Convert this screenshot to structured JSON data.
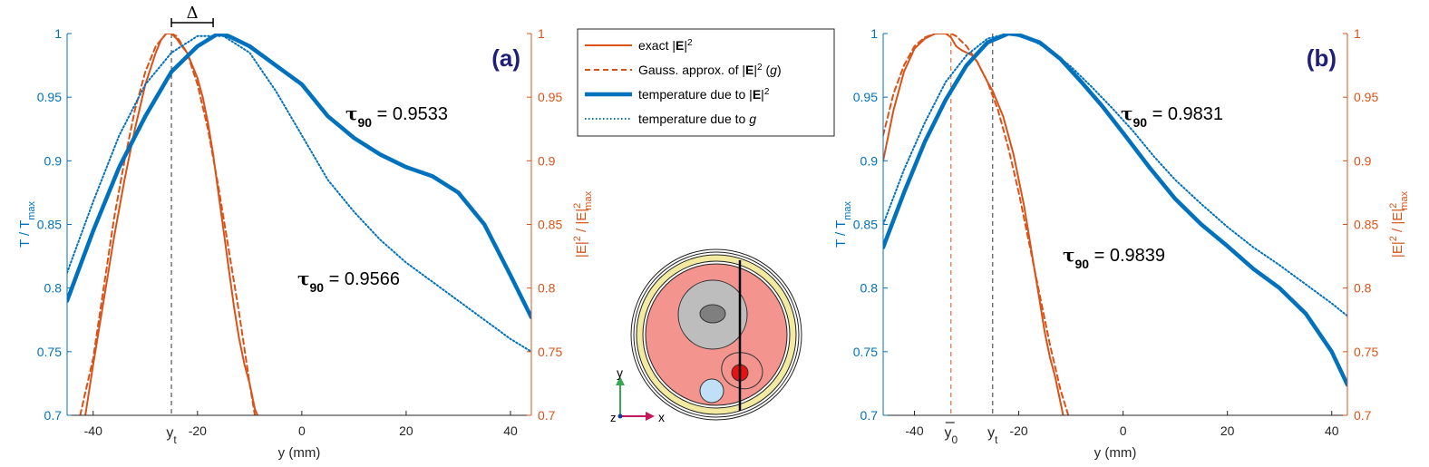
{
  "colors": {
    "blue": "#0072BD",
    "orange": "#D95319",
    "axis": "#262626"
  },
  "legend": {
    "items": [
      {
        "key": "exact",
        "pre": "exact |",
        "bold": "E",
        "post": "|",
        "sup": "2",
        "post2": "",
        "ital": "",
        "tail": ""
      },
      {
        "key": "gauss",
        "pre": "Gauss. approx. of |",
        "bold": "E",
        "post": "|",
        "sup": "2",
        "post2": " (",
        "ital": "g",
        "tail": ")"
      },
      {
        "key": "tempE",
        "pre": "temperature due to |",
        "bold": "E",
        "post": "|",
        "sup": "2",
        "post2": "",
        "ital": "",
        "tail": ""
      },
      {
        "key": "tempG",
        "pre": "temperature due to ",
        "bold": "",
        "post": "",
        "sup": "",
        "post2": "",
        "ital": "g",
        "tail": ""
      }
    ]
  },
  "labels": {
    "xlabel": "y (mm)",
    "yleft_main": "T / T",
    "yleft_sub": "max",
    "yright_parts": [
      "|E|",
      "2",
      " / |E|",
      "2",
      "max"
    ],
    "tau_sym": "τ",
    "tau_sub": "90",
    "delta": "Δ",
    "yt_main": "y",
    "yt_sub": "t",
    "y0_main": "y",
    "y0_sub": "0",
    "axis_y": "y",
    "axis_z": "z",
    "axis_x": "x"
  },
  "chart_data": [
    {
      "panel": "(a)",
      "type": "line",
      "xlabel": "y (mm)",
      "xlim": [
        -45,
        44
      ],
      "ylim_left": [
        0.7,
        1.0
      ],
      "ylim_right": [
        0.7,
        1.0
      ],
      "xticks": [
        -40,
        -20,
        0,
        20,
        40
      ],
      "xtick_labels": [
        "-40",
        "-20",
        "0",
        "20",
        "40"
      ],
      "yticks": [
        0.7,
        0.75,
        0.8,
        0.85,
        0.9,
        0.95,
        1
      ],
      "ytick_labels": [
        "0.7",
        "0.75",
        "0.8",
        "0.85",
        "0.9",
        "0.95",
        "1"
      ],
      "yt": -25,
      "delta_range": [
        -25,
        -17
      ],
      "annotations": [
        {
          "text": "0.9533",
          "x": 5,
          "y": 0.954
        },
        {
          "text": "0.9566",
          "x": -18,
          "y": 0.818
        }
      ],
      "series": [
        {
          "key": "exact",
          "axis": "right",
          "x": [
            -41.5,
            -40,
            -38,
            -36,
            -34,
            -32,
            -30,
            -28,
            -27,
            -26,
            -25,
            -24,
            -23,
            -22,
            -21,
            -20,
            -19,
            -18,
            -17,
            -16,
            -15,
            -14,
            -13,
            -12,
            -11,
            -10,
            -9,
            -8.5
          ],
          "y": [
            0.7,
            0.74,
            0.79,
            0.84,
            0.885,
            0.925,
            0.96,
            0.985,
            0.995,
            1.0,
            1.0,
            0.996,
            0.99,
            0.985,
            0.975,
            0.965,
            0.95,
            0.93,
            0.905,
            0.875,
            0.845,
            0.815,
            0.785,
            0.76,
            0.74,
            0.725,
            0.705,
            0.7
          ]
        },
        {
          "key": "gauss",
          "axis": "right",
          "x": [
            -42.5,
            -40,
            -38,
            -36,
            -34,
            -32,
            -30,
            -28,
            -26,
            -25,
            -24,
            -22,
            -20,
            -18,
            -16,
            -14,
            -12,
            -10,
            -9
          ],
          "y": [
            0.7,
            0.745,
            0.8,
            0.855,
            0.9,
            0.94,
            0.97,
            0.99,
            1.0,
            1.0,
            0.998,
            0.985,
            0.96,
            0.925,
            0.88,
            0.83,
            0.78,
            0.725,
            0.7
          ]
        },
        {
          "key": "tempE",
          "axis": "left",
          "x": [
            -45,
            -40,
            -35,
            -30,
            -25,
            -20,
            -16,
            -14,
            -10,
            -5,
            0,
            5,
            10,
            15,
            20,
            25,
            30,
            35,
            40,
            44
          ],
          "y": [
            0.79,
            0.845,
            0.895,
            0.935,
            0.97,
            0.99,
            1.0,
            0.998,
            0.99,
            0.975,
            0.96,
            0.935,
            0.918,
            0.905,
            0.895,
            0.888,
            0.875,
            0.85,
            0.81,
            0.777
          ]
        },
        {
          "key": "tempG",
          "axis": "left",
          "x": [
            -45,
            -40,
            -35,
            -30,
            -25,
            -20,
            -15,
            -10,
            -5,
            0,
            5,
            10,
            15,
            20,
            25,
            30,
            35,
            40,
            44
          ],
          "y": [
            0.812,
            0.868,
            0.92,
            0.96,
            0.985,
            0.998,
            0.998,
            0.985,
            0.955,
            0.92,
            0.885,
            0.86,
            0.838,
            0.82,
            0.805,
            0.79,
            0.775,
            0.76,
            0.75
          ]
        }
      ]
    },
    {
      "panel": "(b)",
      "type": "line",
      "xlabel": "y (mm)",
      "xlim": [
        -46,
        43
      ],
      "ylim_left": [
        0.7,
        1.0
      ],
      "ylim_right": [
        0.7,
        1.0
      ],
      "xticks": [
        -40,
        -20,
        0,
        20,
        40
      ],
      "xtick_labels": [
        "-40",
        "-20",
        "0",
        "20",
        "40"
      ],
      "yticks": [
        0.7,
        0.75,
        0.8,
        0.85,
        0.9,
        0.95,
        1
      ],
      "ytick_labels": [
        "0.7",
        "0.75",
        "0.8",
        "0.85",
        "0.9",
        "0.95",
        "1"
      ],
      "yt": -25,
      "y0": -33,
      "annotations": [
        {
          "text": "0.9831",
          "x": 0,
          "y": 0.982
        },
        {
          "text": "0.9839",
          "x": -7,
          "y": 0.81
        }
      ],
      "series": [
        {
          "key": "exact",
          "axis": "right",
          "x": [
            -46,
            -44,
            -42,
            -40,
            -38,
            -36,
            -34,
            -33,
            -32,
            -31,
            -30,
            -29,
            -28,
            -27,
            -26,
            -25,
            -24,
            -23,
            -22,
            -21,
            -20,
            -19,
            -18,
            -17,
            -16,
            -15,
            -14,
            -13,
            -12,
            -11.5
          ],
          "y": [
            0.9,
            0.94,
            0.97,
            0.988,
            0.996,
            1.0,
            1.0,
            0.997,
            0.99,
            0.987,
            0.985,
            0.983,
            0.978,
            0.97,
            0.962,
            0.955,
            0.945,
            0.935,
            0.92,
            0.905,
            0.885,
            0.865,
            0.84,
            0.815,
            0.79,
            0.765,
            0.745,
            0.73,
            0.71,
            0.7
          ]
        },
        {
          "key": "gauss",
          "axis": "right",
          "x": [
            -46,
            -44,
            -42,
            -40,
            -38,
            -36,
            -34,
            -33,
            -32,
            -30,
            -28,
            -26,
            -24,
            -22,
            -20,
            -18,
            -16,
            -14,
            -12,
            -10.5
          ],
          "y": [
            0.92,
            0.953,
            0.975,
            0.99,
            0.997,
            1.0,
            1.0,
            1.0,
            0.998,
            0.99,
            0.978,
            0.962,
            0.94,
            0.91,
            0.875,
            0.835,
            0.795,
            0.755,
            0.72,
            0.7
          ]
        },
        {
          "key": "tempE",
          "axis": "left",
          "x": [
            -46,
            -42,
            -38,
            -34,
            -30,
            -26,
            -22,
            -20,
            -16,
            -12,
            -8,
            -4,
            0,
            5,
            10,
            15,
            20,
            25,
            30,
            35,
            40,
            43
          ],
          "y": [
            0.832,
            0.875,
            0.915,
            0.948,
            0.975,
            0.993,
            1.0,
            0.999,
            0.993,
            0.98,
            0.962,
            0.943,
            0.922,
            0.895,
            0.87,
            0.85,
            0.833,
            0.815,
            0.8,
            0.78,
            0.75,
            0.724
          ]
        },
        {
          "key": "tempG",
          "axis": "left",
          "x": [
            -46,
            -42,
            -38,
            -34,
            -30,
            -26,
            -22,
            -18,
            -14,
            -10,
            -6,
            -2,
            2,
            6,
            10,
            15,
            20,
            25,
            30,
            35,
            40,
            43
          ],
          "y": [
            0.85,
            0.893,
            0.93,
            0.962,
            0.983,
            0.996,
            1.0,
            0.996,
            0.987,
            0.974,
            0.958,
            0.941,
            0.923,
            0.903,
            0.885,
            0.866,
            0.848,
            0.832,
            0.818,
            0.803,
            0.788,
            0.778
          ]
        }
      ]
    }
  ]
}
